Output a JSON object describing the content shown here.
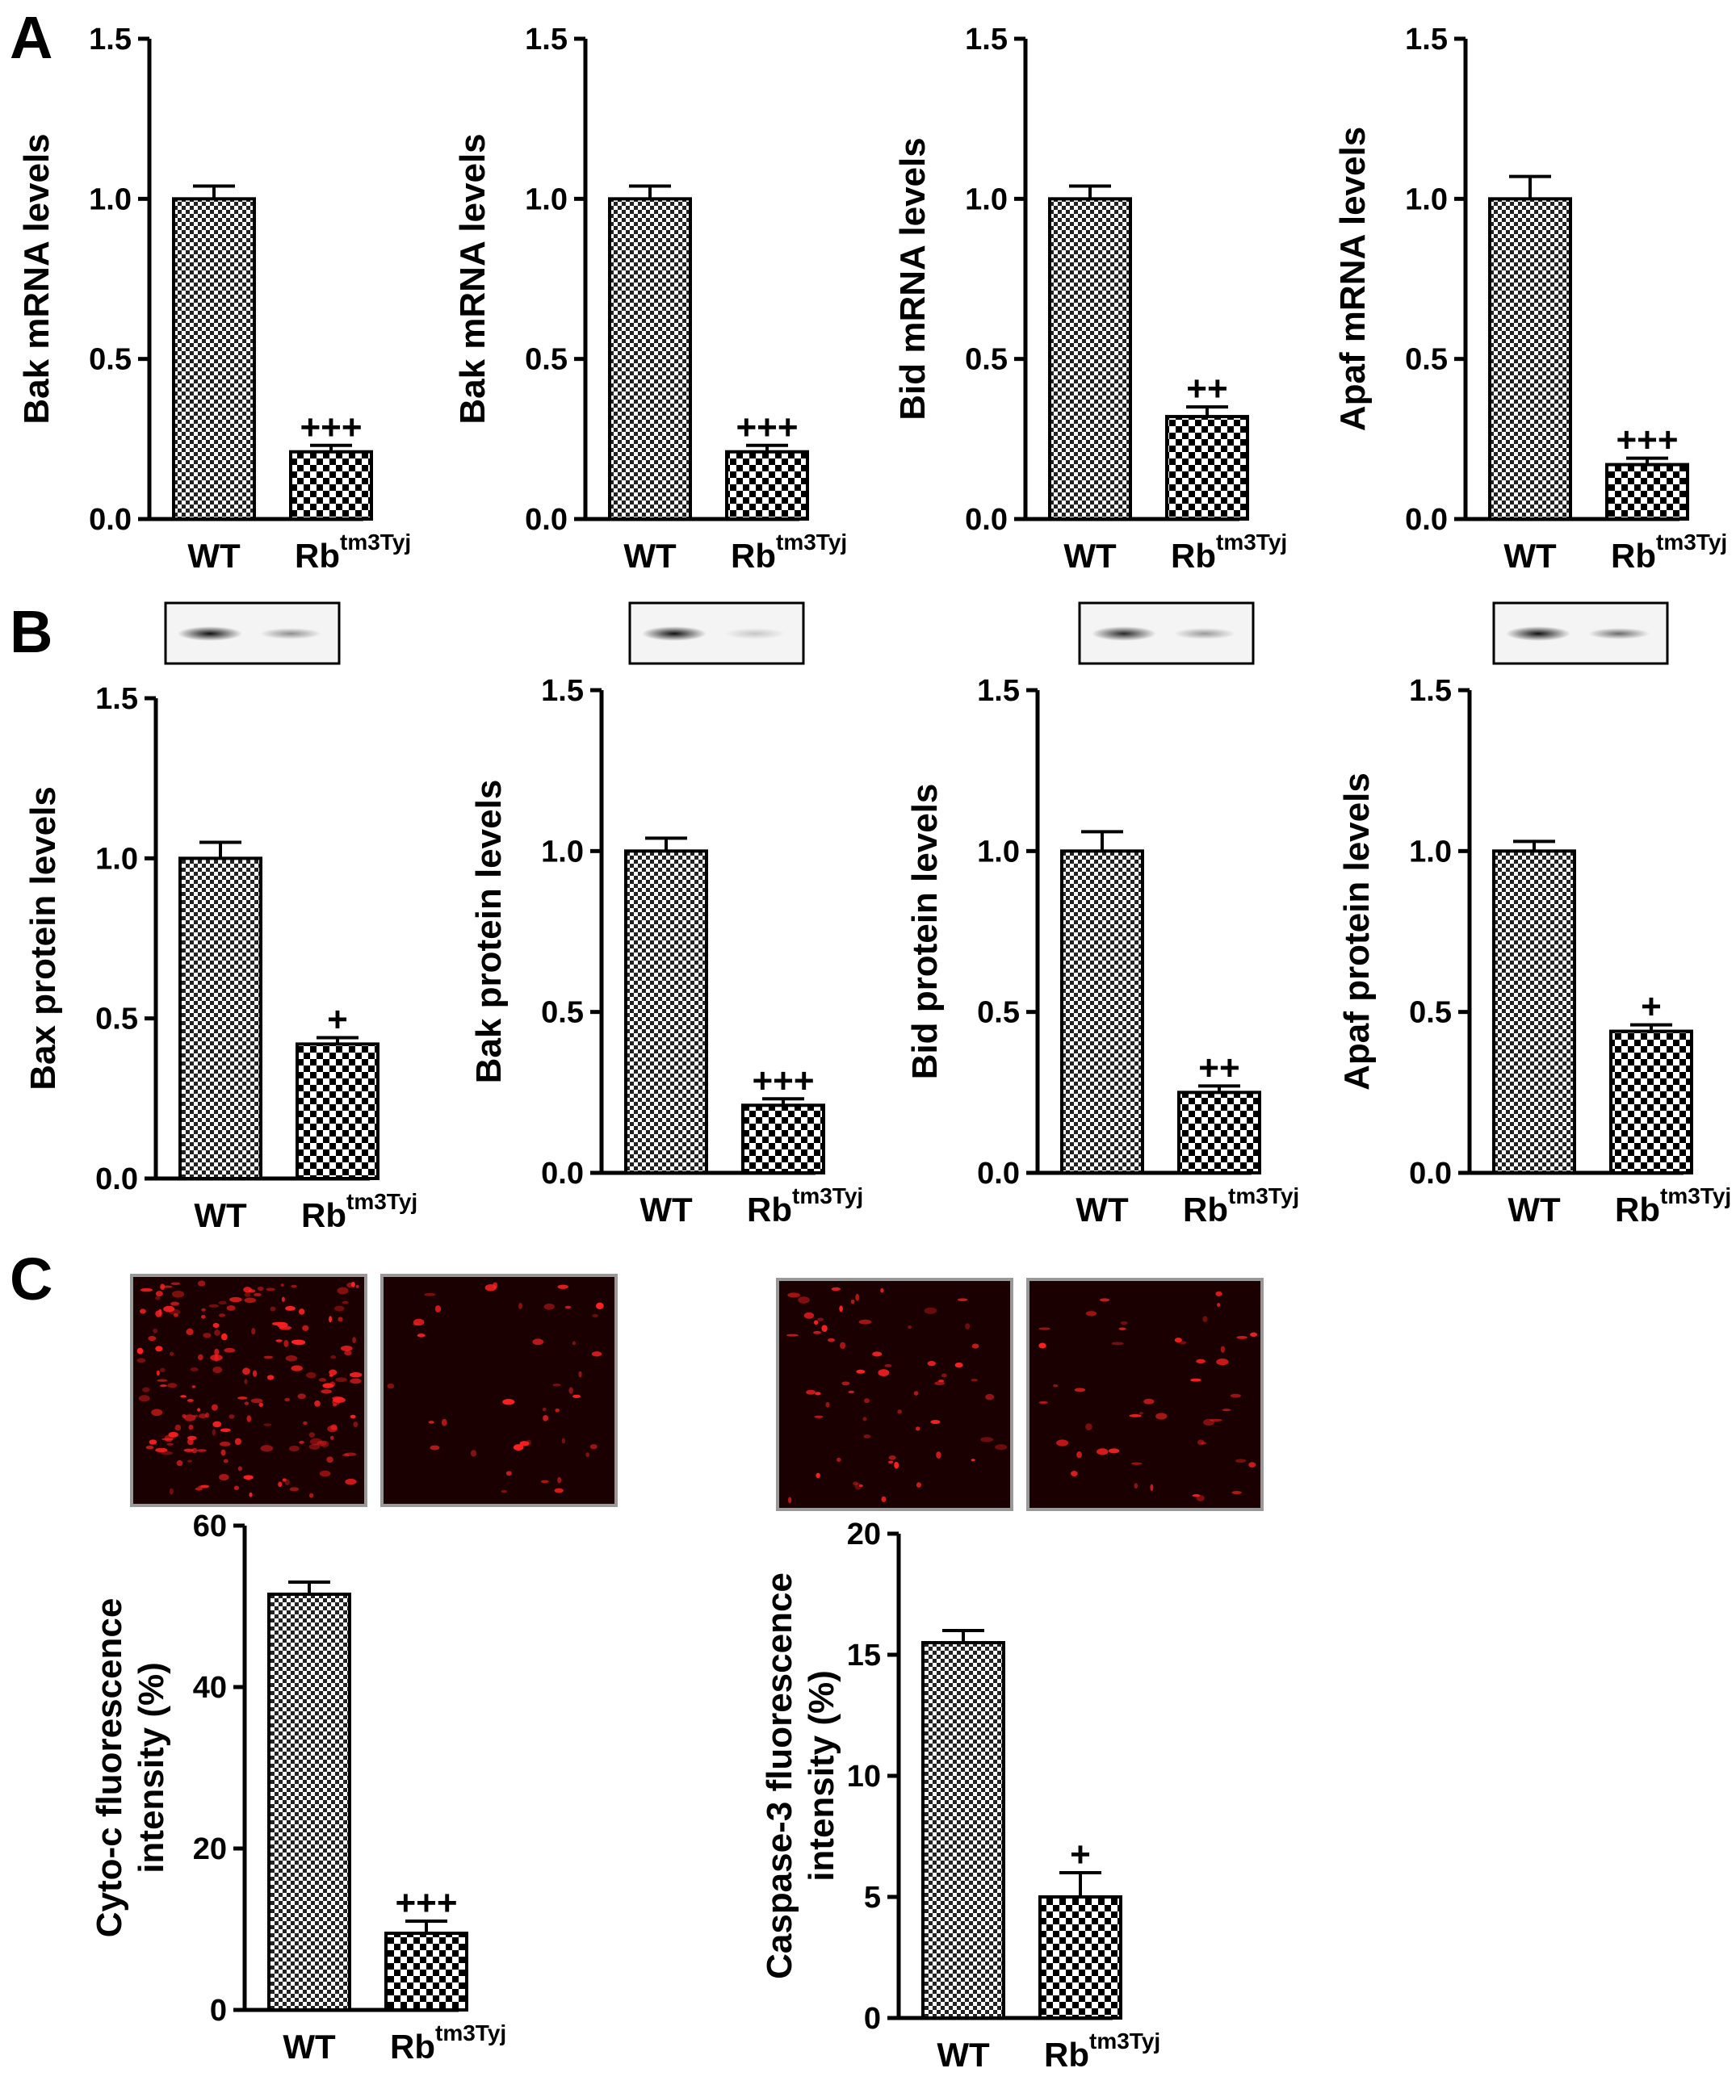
{
  "panel_labels": [
    "A",
    "B",
    "C"
  ],
  "colors": {
    "axis": "#000000",
    "bar_fill": "#ffffff",
    "pattern": "#000000",
    "micro_bg": "#1a0000",
    "micro_red": "#ff2020"
  },
  "microscopy_icon": "fluorescence-micrograph",
  "blot_icon": "western-blot-band",
  "chart_data": [
    {
      "type": "bar",
      "panel": "A",
      "ylabel": "Bak mRNA levels",
      "categories": [
        "WT",
        "Rbtm3Tyj"
      ],
      "cat_base": "Rb",
      "cat_sup": "tm3Tyj",
      "values": [
        1.0,
        0.21
      ],
      "errors": [
        0.04,
        0.02
      ],
      "significance": [
        "",
        "+++"
      ],
      "ylim": [
        0,
        1.5
      ],
      "yticks": [
        "0.0",
        "0.5",
        "1.0",
        "1.5"
      ]
    },
    {
      "type": "bar",
      "panel": "A",
      "ylabel": "Bak mRNA levels",
      "categories": [
        "WT",
        "Rbtm3Tyj"
      ],
      "cat_base": "Rb",
      "cat_sup": "tm3Tyj",
      "values": [
        1.0,
        0.21
      ],
      "errors": [
        0.04,
        0.02
      ],
      "significance": [
        "",
        "+++"
      ],
      "ylim": [
        0,
        1.5
      ],
      "yticks": [
        "0.0",
        "0.5",
        "1.0",
        "1.5"
      ]
    },
    {
      "type": "bar",
      "panel": "A",
      "ylabel": "Bid mRNA levels",
      "categories": [
        "WT",
        "Rbtm3Tyj"
      ],
      "cat_base": "Rb",
      "cat_sup": "tm3Tyj",
      "values": [
        1.0,
        0.32
      ],
      "errors": [
        0.04,
        0.03
      ],
      "significance": [
        "",
        "++"
      ],
      "ylim": [
        0,
        1.5
      ],
      "yticks": [
        "0.0",
        "0.5",
        "1.0",
        "1.5"
      ]
    },
    {
      "type": "bar",
      "panel": "A",
      "ylabel": "Apaf mRNA levels",
      "categories": [
        "WT",
        "Rbtm3Tyj"
      ],
      "cat_base": "Rb",
      "cat_sup": "tm3Tyj",
      "values": [
        1.0,
        0.17
      ],
      "errors": [
        0.07,
        0.02
      ],
      "significance": [
        "",
        "+++"
      ],
      "ylim": [
        0,
        1.5
      ],
      "yticks": [
        "0.0",
        "0.5",
        "1.0",
        "1.5"
      ]
    },
    {
      "type": "bar",
      "panel": "B",
      "ylabel": "Bax protein levels",
      "categories": [
        "WT",
        "Rbtm3Tyj"
      ],
      "cat_base": "Rb",
      "cat_sup": "tm3Tyj",
      "values": [
        1.0,
        0.42
      ],
      "errors": [
        0.05,
        0.02
      ],
      "significance": [
        "",
        "+"
      ],
      "ylim": [
        0,
        1.5
      ],
      "yticks": [
        "0.0",
        "0.5",
        "1.0",
        "1.5"
      ]
    },
    {
      "type": "bar",
      "panel": "B",
      "ylabel": "Bak protein levels",
      "categories": [
        "WT",
        "Rbtm3Tyj"
      ],
      "cat_base": "Rb",
      "cat_sup": "tm3Tyj",
      "values": [
        1.0,
        0.21
      ],
      "errors": [
        0.04,
        0.02
      ],
      "significance": [
        "",
        "+++"
      ],
      "ylim": [
        0,
        1.5
      ],
      "yticks": [
        "0.0",
        "0.5",
        "1.0",
        "1.5"
      ]
    },
    {
      "type": "bar",
      "panel": "B",
      "ylabel": "Bid protein levels",
      "categories": [
        "WT",
        "Rbtm3Tyj"
      ],
      "cat_base": "Rb",
      "cat_sup": "tm3Tyj",
      "values": [
        1.0,
        0.25
      ],
      "errors": [
        0.06,
        0.02
      ],
      "significance": [
        "",
        "++"
      ],
      "ylim": [
        0,
        1.5
      ],
      "yticks": [
        "0.0",
        "0.5",
        "1.0",
        "1.5"
      ]
    },
    {
      "type": "bar",
      "panel": "B",
      "ylabel": "Apaf protein levels",
      "categories": [
        "WT",
        "Rbtm3Tyj"
      ],
      "cat_base": "Rb",
      "cat_sup": "tm3Tyj",
      "values": [
        1.0,
        0.44
      ],
      "errors": [
        0.03,
        0.02
      ],
      "significance": [
        "",
        "+"
      ],
      "ylim": [
        0,
        1.5
      ],
      "yticks": [
        "0.0",
        "0.5",
        "1.0",
        "1.5"
      ]
    },
    {
      "type": "bar",
      "panel": "C",
      "ylabel": "Cyto-c fluorescence intensity (%)",
      "ylabel_lines": [
        "Cyto-c fluorescence",
        "intensity (%)"
      ],
      "categories": [
        "WT",
        "Rbtm3Tyj"
      ],
      "cat_base": "Rb",
      "cat_sup": "tm3Tyj",
      "values": [
        51.5,
        9.5
      ],
      "errors": [
        1.5,
        1.5
      ],
      "significance": [
        "",
        "+++"
      ],
      "ylim": [
        0,
        60
      ],
      "yticks": [
        "0",
        "20",
        "40",
        "60"
      ]
    },
    {
      "type": "bar",
      "panel": "C",
      "ylabel": "Caspase-3 fluorescence intensity (%)",
      "ylabel_lines": [
        "Caspase-3 fluorescence",
        "intensity (%)"
      ],
      "categories": [
        "WT",
        "Rbtm3Tyj"
      ],
      "cat_base": "Rb",
      "cat_sup": "tm3Tyj",
      "values": [
        15.5,
        5.0
      ],
      "errors": [
        0.5,
        1.0
      ],
      "significance": [
        "",
        "+"
      ],
      "ylim": [
        0,
        20
      ],
      "yticks": [
        "0",
        "5",
        "10",
        "15",
        "20"
      ]
    }
  ]
}
